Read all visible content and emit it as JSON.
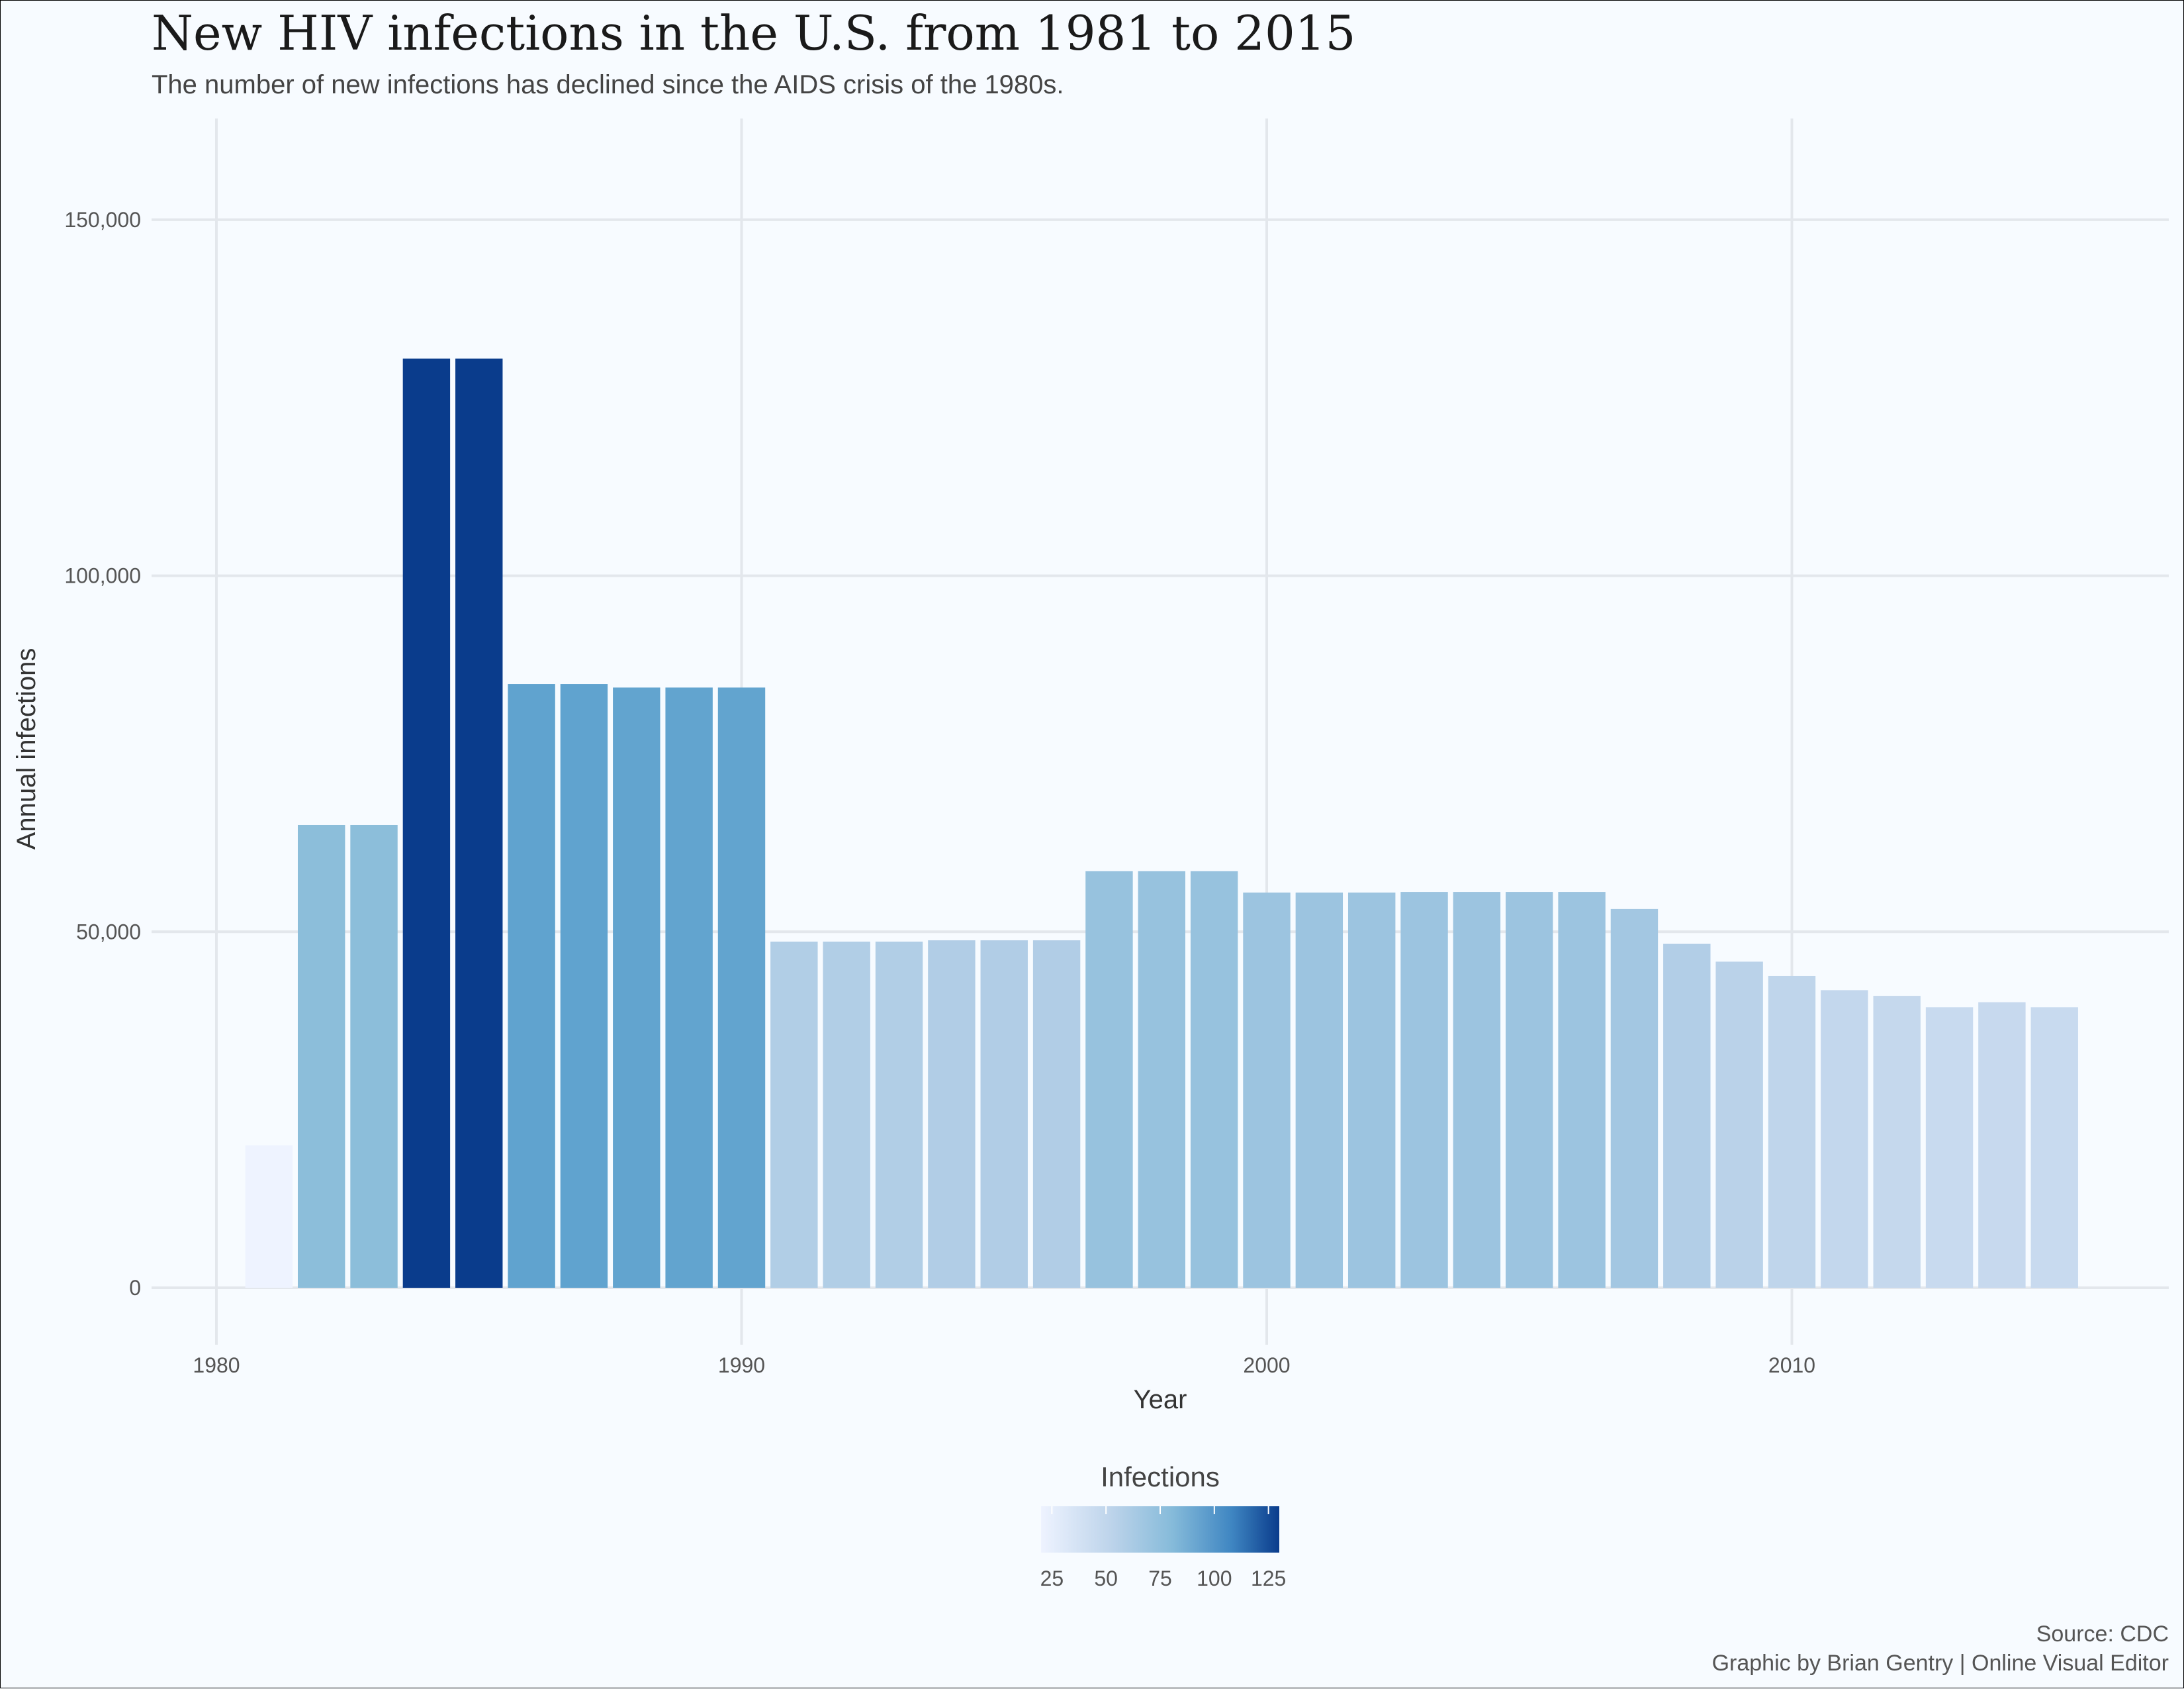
{
  "chart_data": {
    "type": "bar",
    "title": "New HIV infections in the U.S. from 1981 to 2015",
    "subtitle": "The number of new infections has declined since the AIDS crisis of the 1980s.",
    "xlabel": "Year",
    "ylabel": "Annual infections",
    "xlim": [
      1980,
      2016.5
    ],
    "ylim": [
      0,
      160000
    ],
    "x_ticks": [
      1980,
      1990,
      2000,
      2010
    ],
    "y_ticks": [
      0,
      50000,
      100000,
      150000
    ],
    "y_tick_labels": [
      "0",
      "50,000",
      "100,000",
      "150,000"
    ],
    "grid": true,
    "years": [
      1981,
      1982,
      1983,
      1984,
      1985,
      1986,
      1987,
      1988,
      1989,
      1990,
      1991,
      1992,
      1993,
      1994,
      1995,
      1996,
      1997,
      1998,
      1999,
      2000,
      2001,
      2002,
      2003,
      2004,
      2005,
      2006,
      2007,
      2008,
      2009,
      2010,
      2011,
      2012,
      2013,
      2014,
      2015
    ],
    "values": [
      20000,
      65000,
      65000,
      130500,
      130500,
      84800,
      84800,
      84300,
      84300,
      84300,
      48600,
      48600,
      48600,
      48800,
      48800,
      48800,
      58500,
      58500,
      58500,
      55500,
      55500,
      55500,
      55600,
      55600,
      55600,
      55600,
      53200,
      48300,
      45800,
      43800,
      41800,
      41000,
      39400,
      40100,
      39400
    ],
    "legend": {
      "title": "Infections",
      "ticks": [
        25,
        50,
        75,
        100,
        125
      ],
      "tick_labels": [
        "25",
        "50",
        "75",
        "100",
        "125"
      ],
      "range": [
        20,
        130
      ],
      "placement": "bottom",
      "color_low": "#eef3ff",
      "color_high": "#0a3c8c"
    },
    "caption": [
      "Source: CDC",
      "Graphic by Brian Gentry | Online Visual Editor"
    ]
  }
}
